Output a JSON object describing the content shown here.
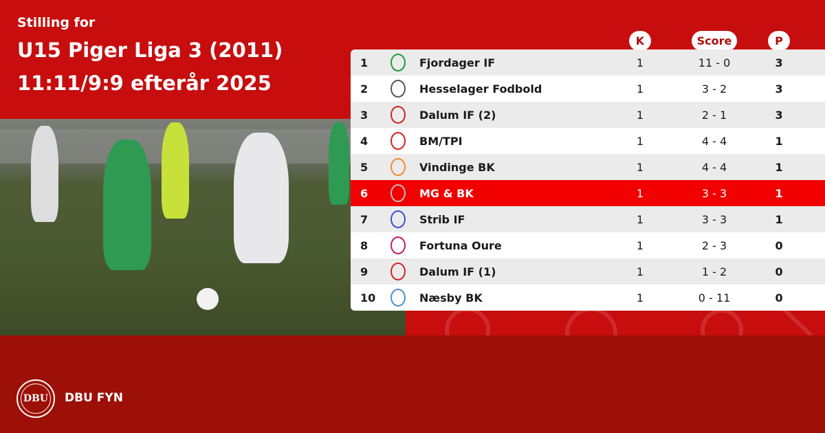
{
  "header": {
    "subtitle": "Stilling for",
    "title_line1": "U15 Piger Liga 3 (2011)",
    "title_line2": "11:11/9:9 efterår 2025"
  },
  "columns": {
    "k": "K",
    "score": "Score",
    "p": "P"
  },
  "highlight_color": "#f20000",
  "rows": [
    {
      "pos": "1",
      "team": "Fjordager IF",
      "k": "1",
      "score": "11 - 0",
      "p": "3",
      "logo_color": "#1f9a3f"
    },
    {
      "pos": "2",
      "team": "Hesselager Fodbold",
      "k": "1",
      "score": "3 - 2",
      "p": "3",
      "logo_color": "#555555"
    },
    {
      "pos": "3",
      "team": "Dalum IF (2)",
      "k": "1",
      "score": "2 - 1",
      "p": "3",
      "logo_color": "#d42020"
    },
    {
      "pos": "4",
      "team": "BM/TPI",
      "k": "1",
      "score": "4 - 4",
      "p": "1",
      "logo_color": "#d42020"
    },
    {
      "pos": "5",
      "team": "Vindinge BK",
      "k": "1",
      "score": "4 - 4",
      "p": "1",
      "logo_color": "#f08a2a"
    },
    {
      "pos": "6",
      "team": "MG & BK",
      "k": "1",
      "score": "3 - 3",
      "p": "1",
      "logo_color": "#bbbbbb"
    },
    {
      "pos": "7",
      "team": "Strib IF",
      "k": "1",
      "score": "3 - 3",
      "p": "1",
      "logo_color": "#3a4fd0"
    },
    {
      "pos": "8",
      "team": "Fortuna Oure",
      "k": "1",
      "score": "2 - 3",
      "p": "0",
      "logo_color": "#c21a6a"
    },
    {
      "pos": "9",
      "team": "Dalum IF (1)",
      "k": "1",
      "score": "1 - 2",
      "p": "0",
      "logo_color": "#d42020"
    },
    {
      "pos": "10",
      "team": "Næsby BK",
      "k": "1",
      "score": "0 - 11",
      "p": "0",
      "logo_color": "#4a90d0"
    }
  ],
  "footer": {
    "org": "DBU FYN",
    "logo_text": "DBU"
  }
}
